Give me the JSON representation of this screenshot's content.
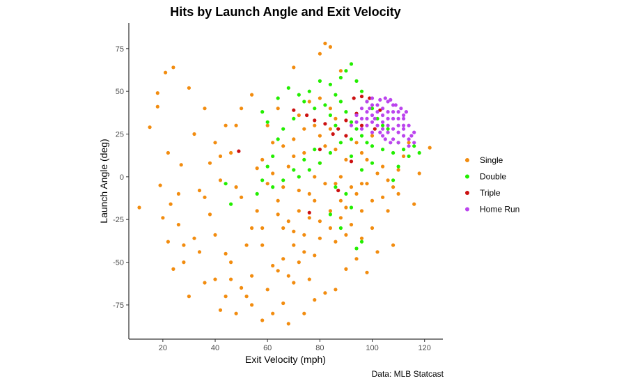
{
  "chart_data": {
    "type": "scatter",
    "title": "Hits by Launch Angle and Exit Velocity",
    "xlabel": "Exit Velocity (mph)",
    "ylabel": "Launch Angle (deg)",
    "xlim": [
      7,
      127
    ],
    "ylim": [
      -95,
      90
    ],
    "x_ticks": [
      20,
      40,
      60,
      80,
      100,
      120
    ],
    "y_ticks": [
      -75,
      -50,
      -25,
      0,
      25,
      50,
      75
    ],
    "grid": false,
    "legend_position": "right",
    "caption": "Data: MLB Statcast",
    "series": [
      {
        "name": "Single",
        "color": "#F28C0F",
        "points": [
          [
            11,
            -18
          ],
          [
            15,
            29
          ],
          [
            18,
            49
          ],
          [
            18,
            41
          ],
          [
            21,
            61
          ],
          [
            24,
            64
          ],
          [
            22,
            14
          ],
          [
            19,
            -5
          ],
          [
            23,
            -16
          ],
          [
            26,
            -28
          ],
          [
            27,
            7
          ],
          [
            28,
            -40
          ],
          [
            30,
            52
          ],
          [
            32,
            25
          ],
          [
            34,
            -8
          ],
          [
            36,
            40
          ],
          [
            38,
            -22
          ],
          [
            40,
            -34
          ],
          [
            42,
            12
          ],
          [
            44,
            -45
          ],
          [
            46,
            -60
          ],
          [
            48,
            30
          ],
          [
            50,
            -12
          ],
          [
            52,
            -70
          ],
          [
            54,
            -58
          ],
          [
            56,
            5
          ],
          [
            58,
            -40
          ],
          [
            60,
            -66
          ],
          [
            62,
            -52
          ],
          [
            64,
            -55
          ],
          [
            66,
            -48
          ],
          [
            68,
            -58
          ],
          [
            70,
            -62
          ],
          [
            72,
            -50
          ],
          [
            74,
            -44
          ],
          [
            76,
            -60
          ],
          [
            78,
            -46
          ],
          [
            62,
            -80
          ],
          [
            58,
            -84
          ],
          [
            66,
            -74
          ],
          [
            54,
            -75
          ],
          [
            50,
            -65
          ],
          [
            70,
            -40
          ],
          [
            80,
            -36
          ],
          [
            84,
            -30
          ],
          [
            88,
            -24
          ],
          [
            66,
            -30
          ],
          [
            72,
            -20
          ],
          [
            76,
            -10
          ],
          [
            78,
            0
          ],
          [
            80,
            8
          ],
          [
            82,
            18
          ],
          [
            84,
            28
          ],
          [
            86,
            34
          ],
          [
            72,
            36
          ],
          [
            76,
            44
          ],
          [
            80,
            46
          ],
          [
            84,
            40
          ],
          [
            70,
            22
          ],
          [
            74,
            14
          ],
          [
            68,
            6
          ],
          [
            66,
            -6
          ],
          [
            90,
            -18
          ],
          [
            94,
            -10
          ],
          [
            98,
            -4
          ],
          [
            102,
            2
          ],
          [
            104,
            -12
          ],
          [
            106,
            -20
          ],
          [
            108,
            -6
          ],
          [
            110,
            4
          ],
          [
            112,
            12
          ],
          [
            114,
            20
          ],
          [
            100,
            -30
          ],
          [
            96,
            -36
          ],
          [
            92,
            -28
          ],
          [
            88,
            -14
          ],
          [
            86,
            -4
          ],
          [
            84,
            -20
          ],
          [
            90,
            10
          ],
          [
            94,
            20
          ],
          [
            96,
            14
          ],
          [
            100,
            24
          ],
          [
            64,
            40
          ],
          [
            62,
            20
          ],
          [
            60,
            30
          ],
          [
            58,
            10
          ],
          [
            56,
            -20
          ],
          [
            54,
            -30
          ],
          [
            52,
            -40
          ],
          [
            46,
            -50
          ],
          [
            44,
            -70
          ],
          [
            48,
            -80
          ],
          [
            42,
            -78
          ],
          [
            40,
            -60
          ],
          [
            36,
            -62
          ],
          [
            34,
            -44
          ],
          [
            32,
            -36
          ],
          [
            30,
            -70
          ],
          [
            28,
            -50
          ],
          [
            26,
            -10
          ],
          [
            24,
            -54
          ],
          [
            22,
            -38
          ],
          [
            20,
            -24
          ],
          [
            44,
            30
          ],
          [
            40,
            20
          ],
          [
            38,
            8
          ],
          [
            42,
            -2
          ],
          [
            36,
            -12
          ],
          [
            50,
            40
          ],
          [
            54,
            48
          ],
          [
            82,
            78
          ],
          [
            80,
            72
          ],
          [
            70,
            64
          ],
          [
            84,
            76
          ],
          [
            88,
            62
          ],
          [
            122,
            17
          ],
          [
            118,
            2
          ],
          [
            116,
            -16
          ],
          [
            108,
            -40
          ],
          [
            102,
            -44
          ],
          [
            94,
            -48
          ],
          [
            90,
            -54
          ],
          [
            86,
            -66
          ],
          [
            98,
            -56
          ],
          [
            78,
            -72
          ],
          [
            74,
            -80
          ],
          [
            68,
            -86
          ],
          [
            82,
            -68
          ],
          [
            76,
            -24
          ],
          [
            74,
            -34
          ],
          [
            68,
            -26
          ],
          [
            64,
            -14
          ],
          [
            60,
            -4
          ],
          [
            88,
            0
          ],
          [
            92,
            -6
          ],
          [
            96,
            -20
          ],
          [
            100,
            -14
          ],
          [
            104,
            6
          ],
          [
            106,
            -2
          ],
          [
            110,
            -10
          ],
          [
            96,
            -4
          ],
          [
            98,
            10
          ],
          [
            86,
            16
          ],
          [
            80,
            24
          ],
          [
            78,
            30
          ],
          [
            74,
            28
          ],
          [
            70,
            12
          ],
          [
            66,
            18
          ],
          [
            62,
            2
          ],
          [
            72,
            -8
          ],
          [
            78,
            -14
          ],
          [
            82,
            -4
          ],
          [
            90,
            -34
          ],
          [
            86,
            -38
          ],
          [
            80,
            -26
          ],
          [
            70,
            -32
          ],
          [
            64,
            -22
          ],
          [
            58,
            -30
          ],
          [
            48,
            -6
          ],
          [
            46,
            14
          ]
        ]
      },
      {
        "name": "Double",
        "color": "#22EE00",
        "points": [
          [
            68,
            52
          ],
          [
            72,
            48
          ],
          [
            76,
            50
          ],
          [
            80,
            56
          ],
          [
            84,
            54
          ],
          [
            86,
            48
          ],
          [
            88,
            44
          ],
          [
            90,
            38
          ],
          [
            92,
            32
          ],
          [
            94,
            28
          ],
          [
            96,
            24
          ],
          [
            98,
            20
          ],
          [
            100,
            18
          ],
          [
            104,
            16
          ],
          [
            108,
            14
          ],
          [
            112,
            16
          ],
          [
            114,
            12
          ],
          [
            116,
            18
          ],
          [
            118,
            14
          ],
          [
            110,
            20
          ],
          [
            86,
            30
          ],
          [
            84,
            36
          ],
          [
            82,
            42
          ],
          [
            78,
            40
          ],
          [
            74,
            44
          ],
          [
            70,
            34
          ],
          [
            66,
            28
          ],
          [
            64,
            22
          ],
          [
            62,
            12
          ],
          [
            60,
            6
          ],
          [
            58,
            -2
          ],
          [
            56,
            -10
          ],
          [
            60,
            32
          ],
          [
            58,
            38
          ],
          [
            64,
            46
          ],
          [
            88,
            58
          ],
          [
            90,
            62
          ],
          [
            92,
            66
          ],
          [
            94,
            56
          ],
          [
            96,
            50
          ],
          [
            98,
            44
          ],
          [
            100,
            40
          ],
          [
            102,
            34
          ],
          [
            104,
            30
          ],
          [
            106,
            28
          ],
          [
            92,
            22
          ],
          [
            88,
            20
          ],
          [
            84,
            14
          ],
          [
            80,
            8
          ],
          [
            76,
            4
          ],
          [
            72,
            0
          ],
          [
            96,
            -38
          ],
          [
            94,
            -42
          ],
          [
            44,
            -4
          ],
          [
            46,
            -16
          ],
          [
            84,
            -22
          ],
          [
            88,
            -30
          ],
          [
            92,
            -18
          ],
          [
            90,
            -10
          ],
          [
            86,
            -6
          ],
          [
            110,
            6
          ],
          [
            108,
            -2
          ],
          [
            100,
            8
          ],
          [
            96,
            4
          ],
          [
            92,
            12
          ],
          [
            62,
            -6
          ],
          [
            66,
            -2
          ],
          [
            70,
            4
          ],
          [
            74,
            10
          ],
          [
            78,
            16
          ]
        ]
      },
      {
        "name": "Triple",
        "color": "#CC1111",
        "points": [
          [
            49,
            15
          ],
          [
            70,
            39
          ],
          [
            75,
            36
          ],
          [
            82,
            31
          ],
          [
            87,
            28
          ],
          [
            90,
            33
          ],
          [
            93,
            46
          ],
          [
            96,
            47
          ],
          [
            99,
            46
          ],
          [
            103,
            39
          ],
          [
            80,
            16
          ],
          [
            92,
            9
          ],
          [
            87,
            -8
          ],
          [
            76,
            -21
          ],
          [
            96,
            30
          ],
          [
            101,
            28
          ],
          [
            85,
            25
          ],
          [
            78,
            33
          ],
          [
            90,
            24
          ],
          [
            94,
            37
          ]
        ]
      },
      {
        "name": "Home Run",
        "color": "#BB44EE",
        "points": [
          [
            96,
            40
          ],
          [
            98,
            44
          ],
          [
            100,
            46
          ],
          [
            102,
            42
          ],
          [
            104,
            40
          ],
          [
            106,
            44
          ],
          [
            108,
            42
          ],
          [
            110,
            38
          ],
          [
            112,
            34
          ],
          [
            114,
            30
          ],
          [
            112,
            24
          ],
          [
            110,
            20
          ],
          [
            108,
            22
          ],
          [
            104,
            24
          ],
          [
            100,
            26
          ],
          [
            98,
            30
          ],
          [
            96,
            34
          ],
          [
            94,
            36
          ],
          [
            92,
            30
          ],
          [
            100,
            36
          ],
          [
            104,
            32
          ],
          [
            106,
            30
          ],
          [
            108,
            28
          ],
          [
            110,
            26
          ],
          [
            112,
            28
          ],
          [
            114,
            22
          ],
          [
            116,
            20
          ],
          [
            114,
            18
          ],
          [
            106,
            38
          ],
          [
            102,
            38
          ],
          [
            100,
            42
          ],
          [
            98,
            38
          ],
          [
            96,
            28
          ],
          [
            94,
            32
          ],
          [
            104,
            36
          ],
          [
            108,
            34
          ],
          [
            110,
            30
          ],
          [
            112,
            30
          ],
          [
            106,
            26
          ],
          [
            102,
            30
          ],
          [
            98,
            34
          ],
          [
            100,
            32
          ],
          [
            104,
            28
          ],
          [
            106,
            34
          ],
          [
            108,
            38
          ],
          [
            110,
            34
          ],
          [
            112,
            36
          ],
          [
            116,
            26
          ],
          [
            115,
            24
          ],
          [
            103,
            45
          ],
          [
            105,
            46
          ],
          [
            107,
            45
          ],
          [
            109,
            42
          ],
          [
            111,
            40
          ],
          [
            113,
            38
          ],
          [
            99,
            40
          ],
          [
            101,
            34
          ],
          [
            103,
            26
          ],
          [
            105,
            22
          ],
          [
            107,
            20
          ]
        ]
      }
    ]
  }
}
